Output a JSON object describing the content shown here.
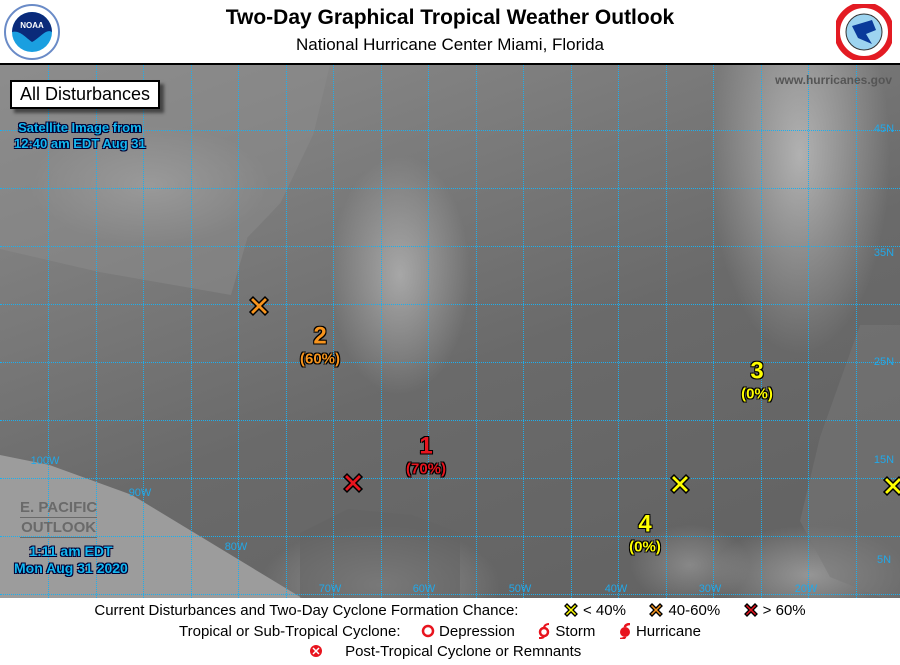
{
  "header": {
    "title": "Two-Day Graphical Tropical Weather Outlook",
    "subtitle": "National Hurricane Center  Miami, Florida",
    "left_logo": "NOAA",
    "right_logo": "NATIONAL WEATHER SERVICE"
  },
  "map": {
    "view_label": "All Disturbances",
    "satellite_line1": "Satellite Image from",
    "satellite_line2": "12:40 am EDT Aug 31",
    "website": "www.hurricanes.gov",
    "epac_line1": "E. PACIFIC",
    "epac_line2": "OUTLOOK",
    "issued_line1": "1:11 am EDT",
    "issued_line2": "Mon Aug 31 2020",
    "lon_labels": [
      "100W",
      "90W",
      "80W",
      "70W",
      "60W",
      "50W",
      "40W",
      "30W",
      "20W"
    ],
    "lat_labels": [
      "45N",
      "35N",
      "25N",
      "15N",
      "5N"
    ],
    "disturbances": [
      {
        "id": "1",
        "chance": "(70%)",
        "category": "high",
        "color": "#e8141e"
      },
      {
        "id": "2",
        "chance": "(60%)",
        "category": "medium",
        "color": "#f7941d"
      },
      {
        "id": "3",
        "chance": "(0%)",
        "category": "low",
        "color": "#ffff00"
      },
      {
        "id": "4",
        "chance": "(0%)",
        "category": "low",
        "color": "#ffff00"
      }
    ]
  },
  "legend": {
    "line1_label": "Current Disturbances and Two-Day Cyclone Formation Chance:",
    "low": "< 40%",
    "medium": "40-60%",
    "high": "> 60%",
    "line2_label": "Tropical or Sub-Tropical Cyclone:",
    "depression": "Depression",
    "storm": "Storm",
    "hurricane": "Hurricane",
    "post_tropical": "Post-Tropical Cyclone or Remnants"
  }
}
